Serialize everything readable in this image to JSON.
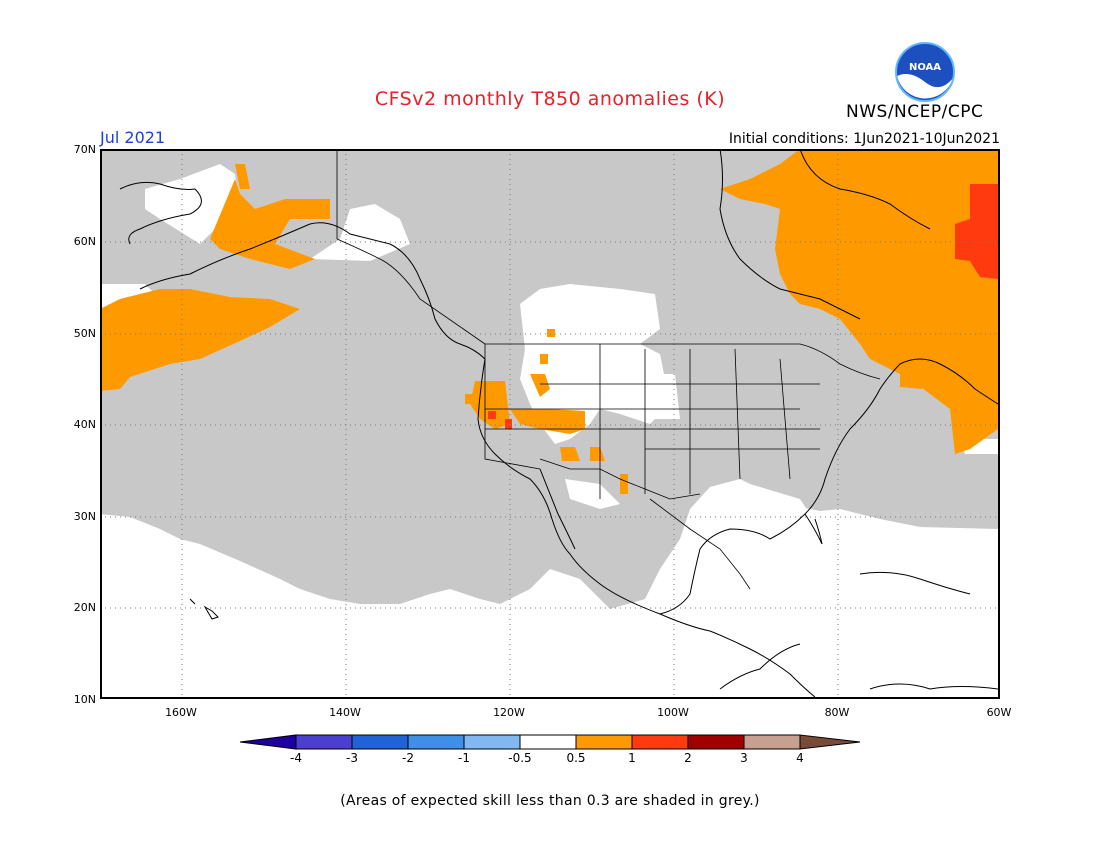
{
  "header": {
    "title": "CFSv2 monthly T850 anomalies (K)",
    "agency": "NWS/NCEP/CPC",
    "logo_text": "NOAA",
    "month": "Jul 2021",
    "initial_conditions": "Initial conditions: 1Jun2021-10Jun2021"
  },
  "axes": {
    "lat_labels": [
      "70N",
      "60N",
      "50N",
      "40N",
      "30N",
      "20N",
      "10N"
    ],
    "lon_labels": [
      "160W",
      "140W",
      "120W",
      "100W",
      "80W",
      "60W"
    ]
  },
  "colorbar": {
    "labels": [
      "-4",
      "-3",
      "-2",
      "-1",
      "-0.5",
      "0.5",
      "1",
      "2",
      "3",
      "4"
    ],
    "colors": [
      "#1e00a0",
      "#4b3fd0",
      "#1f63d6",
      "#3f8ee8",
      "#82b8f2",
      "#ffffff",
      "#ff9900",
      "#ff3a0f",
      "#a00000",
      "#c8a090",
      "#7a4a38"
    ],
    "grey": "#c8c8c8"
  },
  "footnote": "(Areas of expected skill less than 0.3 are shaded in grey.)"
}
